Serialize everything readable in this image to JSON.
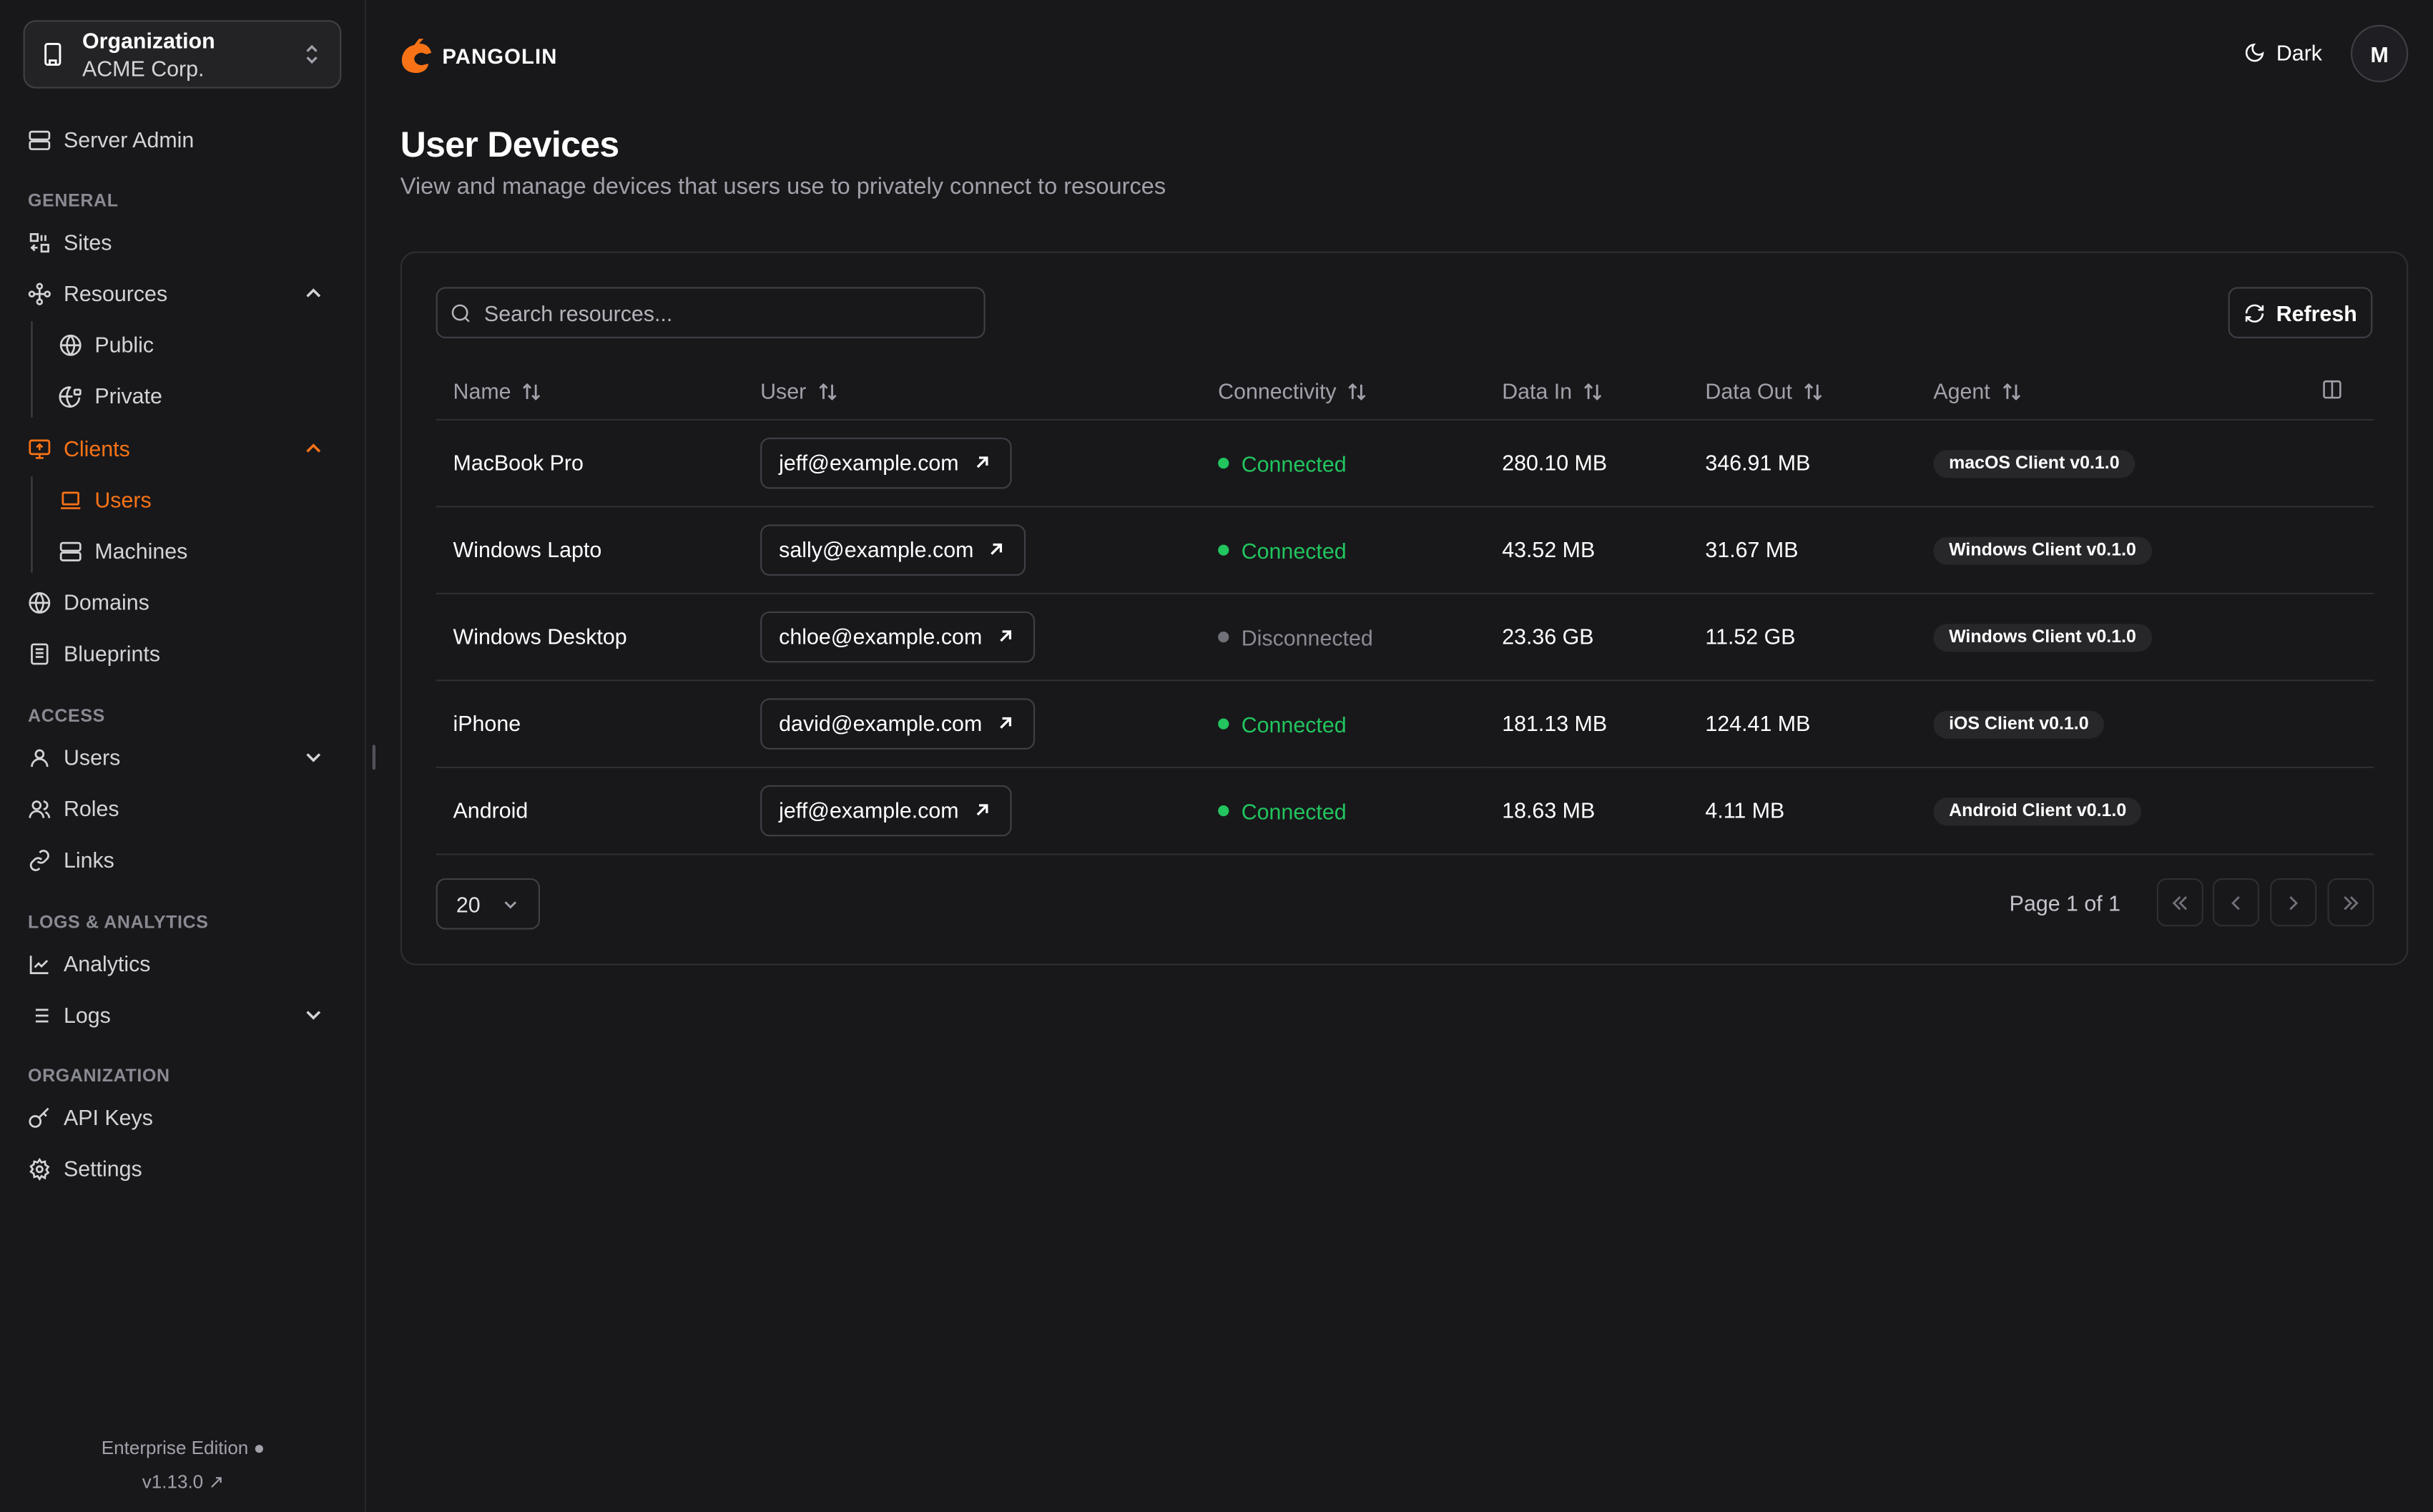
{
  "org": {
    "label": "Organization",
    "name": "ACME Corp."
  },
  "sidebar": {
    "server_admin": "Server Admin",
    "sections": {
      "general": "GENERAL",
      "access": "ACCESS",
      "logs": "LOGS & ANALYTICS",
      "organization": "ORGANIZATION"
    },
    "items": {
      "sites": "Sites",
      "resources": "Resources",
      "public": "Public",
      "private": "Private",
      "clients": "Clients",
      "users_sub": "Users",
      "machines": "Machines",
      "domains": "Domains",
      "blueprints": "Blueprints",
      "users": "Users",
      "roles": "Roles",
      "links": "Links",
      "analytics": "Analytics",
      "logs": "Logs",
      "api_keys": "API Keys",
      "settings": "Settings"
    },
    "edition": "Enterprise Edition",
    "version": "v1.13.0"
  },
  "header": {
    "brand": "PANGOLIN",
    "theme": "Dark",
    "avatar": "M"
  },
  "page": {
    "title": "User Devices",
    "description": "View and manage devices that users use to privately connect to resources"
  },
  "toolbar": {
    "search_placeholder": "Search resources...",
    "refresh": "Refresh"
  },
  "table": {
    "columns": [
      "Name",
      "User",
      "Connectivity",
      "Data In",
      "Data Out",
      "Agent"
    ],
    "rows": [
      {
        "name": "MacBook Pro",
        "user": "jeff@example.com",
        "status": "Connected",
        "data_in": "280.10 MB",
        "data_out": "346.91 MB",
        "agent": "macOS Client v0.1.0"
      },
      {
        "name": "Windows Lapto",
        "user": "sally@example.com",
        "status": "Connected",
        "data_in": "43.52 MB",
        "data_out": "31.67 MB",
        "agent": "Windows Client v0.1.0"
      },
      {
        "name": "Windows Desktop",
        "user": "chloe@example.com",
        "status": "Disconnected",
        "data_in": "23.36 GB",
        "data_out": "11.52 GB",
        "agent": "Windows Client v0.1.0"
      },
      {
        "name": "iPhone",
        "user": "david@example.com",
        "status": "Connected",
        "data_in": "181.13 MB",
        "data_out": "124.41 MB",
        "agent": "iOS Client v0.1.0"
      },
      {
        "name": "Android",
        "user": "jeff@example.com",
        "status": "Connected",
        "data_in": "18.63 MB",
        "data_out": "4.11 MB",
        "agent": "Android Client v0.1.0"
      }
    ]
  },
  "pagination": {
    "page_size": "20",
    "page_info": "Page 1 of 1"
  },
  "colors": {
    "accent": "#f97316",
    "connected": "#22c55e",
    "disconnected": "#71717a",
    "background": "#18181b"
  }
}
